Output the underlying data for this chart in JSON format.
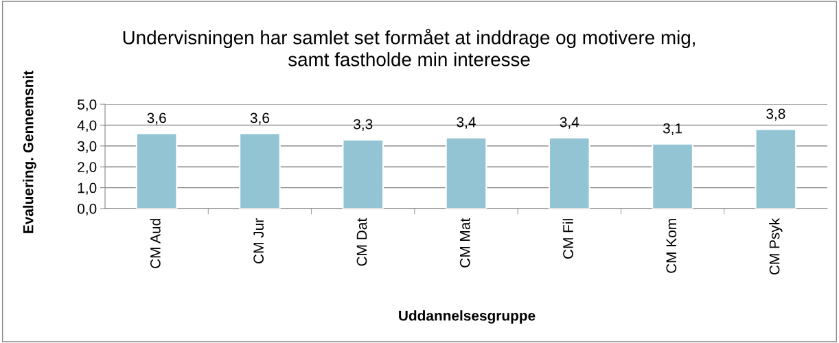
{
  "chart_data": {
    "type": "bar",
    "title": "Undervisningen har samlet set formået at inddrage og motivere mig,\nsamt fastholde min interesse",
    "xlabel": "Uddannelsesgruppe",
    "ylabel": "Evaluering. Gennemsnit",
    "categories": [
      "CM Aud",
      "CM Jur",
      "CM Dat",
      "CM Mat",
      "CM Fil",
      "CM Kom",
      "CM Psyk"
    ],
    "values": [
      3.6,
      3.6,
      3.3,
      3.4,
      3.4,
      3.1,
      3.8
    ],
    "value_labels": [
      "3,6",
      "3,6",
      "3,3",
      "3,4",
      "3,4",
      "3,1",
      "3,8"
    ],
    "color": "#93c4d4",
    "ylim": [
      0,
      5
    ],
    "yticks": [
      {
        "value": 0,
        "label": "0,0"
      },
      {
        "value": 1,
        "label": "1,0"
      },
      {
        "value": 2,
        "label": "2,0"
      },
      {
        "value": 3,
        "label": "3,0"
      },
      {
        "value": 4,
        "label": "4,0"
      },
      {
        "value": 5,
        "label": "5,0"
      }
    ],
    "grid": "y",
    "legend": false
  }
}
